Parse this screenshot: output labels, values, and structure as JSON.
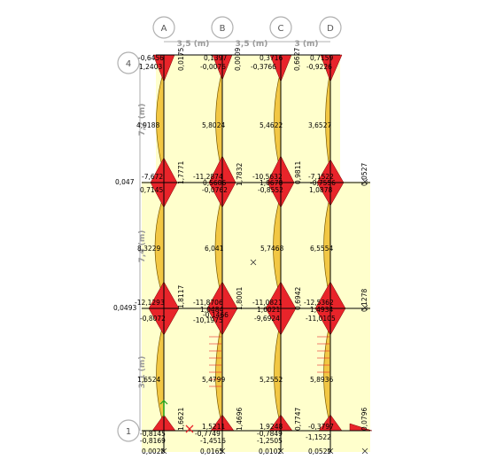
{
  "columns": [
    {
      "label": "A"
    },
    {
      "label": "B"
    },
    {
      "label": "C"
    },
    {
      "label": "D"
    }
  ],
  "rows": [
    {
      "label": "4"
    },
    {
      "label": "1"
    }
  ],
  "spans_x": [
    "3,5 (m)",
    "3,5 (m)",
    "3 (m)"
  ],
  "spans_y": [
    "7,2 (m)",
    "7,4 (m)",
    "3,1 (m)"
  ],
  "colors": {
    "slab": "#ffffcc",
    "moment_positive": "#f2c744",
    "moment_negative": "#e8242a",
    "frame": "#000000",
    "grid_bubble": "#b0b0b0"
  },
  "labels": [
    {
      "id": "t1",
      "text": "-0,6456"
    },
    {
      "id": "t2",
      "text": "1,2403"
    },
    {
      "id": "t3",
      "text": "0,0175"
    },
    {
      "id": "t4",
      "text": "0,1397"
    },
    {
      "id": "t5",
      "text": "-0,0076"
    },
    {
      "id": "t6",
      "text": "0,0009"
    },
    {
      "id": "t7",
      "text": "0,3716"
    },
    {
      "id": "t8",
      "text": "-0,3766"
    },
    {
      "id": "t9",
      "text": "0,6627"
    },
    {
      "id": "t10",
      "text": "0,7159"
    },
    {
      "id": "t11",
      "text": "-0,9226"
    },
    {
      "id": "t12",
      "text": "4,9188"
    },
    {
      "id": "t13",
      "text": "5,8024"
    },
    {
      "id": "t14",
      "text": "5,4622"
    },
    {
      "id": "t15",
      "text": "3,6527"
    },
    {
      "id": "t16",
      "text": "-7,672"
    },
    {
      "id": "t17",
      "text": "1,7771"
    },
    {
      "id": "t18",
      "text": "-11,2874"
    },
    {
      "id": "t19",
      "text": "1,7832"
    },
    {
      "id": "t20",
      "text": "-10,5632"
    },
    {
      "id": "t21",
      "text": "0,9811"
    },
    {
      "id": "t22",
      "text": "-7,1522"
    },
    {
      "id": "t23",
      "text": "0,0527"
    },
    {
      "id": "t24",
      "text": "0,047"
    },
    {
      "id": "t25",
      "text": "0,7145"
    },
    {
      "id": "t26",
      "text": "0,5686"
    },
    {
      "id": "t27",
      "text": "-0,0762"
    },
    {
      "id": "t28",
      "text": "1,0678"
    },
    {
      "id": "t29",
      "text": "-0,8552"
    },
    {
      "id": "t30",
      "text": "-0,7556"
    },
    {
      "id": "t31",
      "text": "1,0878"
    },
    {
      "id": "t32",
      "text": "8,3229"
    },
    {
      "id": "t33",
      "text": "6,041"
    },
    {
      "id": "t34",
      "text": "5,7468"
    },
    {
      "id": "t35",
      "text": "6,5554"
    },
    {
      "id": "t36",
      "text": "-12,1293"
    },
    {
      "id": "t37",
      "text": "1,8117"
    },
    {
      "id": "t38",
      "text": "-11,8706"
    },
    {
      "id": "t39",
      "text": "1,8001"
    },
    {
      "id": "t40",
      "text": "-11,0821"
    },
    {
      "id": "t41",
      "text": "0,6942"
    },
    {
      "id": "t42",
      "text": "-12,5362"
    },
    {
      "id": "t43",
      "text": "0,1278"
    },
    {
      "id": "t44",
      "text": "0,0493"
    },
    {
      "id": "t45",
      "text": "-0,8072"
    },
    {
      "id": "t46",
      "text": "1,0484"
    },
    {
      "id": "t47",
      "text": "-0,1466"
    },
    {
      "id": "t48",
      "text": "-10,1975"
    },
    {
      "id": "t49",
      "text": "1,6021"
    },
    {
      "id": "t50",
      "text": "-9,6924"
    },
    {
      "id": "t51",
      "text": "1,4934"
    },
    {
      "id": "t52",
      "text": "-11,0105"
    },
    {
      "id": "t53",
      "text": "1,6524"
    },
    {
      "id": "t54",
      "text": "5,4799"
    },
    {
      "id": "t55",
      "text": "5,2552"
    },
    {
      "id": "t56",
      "text": "5,8936"
    },
    {
      "id": "t57",
      "text": "1,6621"
    },
    {
      "id": "t58",
      "text": "1,4696"
    },
    {
      "id": "t59",
      "text": "0,7747"
    },
    {
      "id": "t60",
      "text": "0,0796"
    },
    {
      "id": "t61",
      "text": "-0,8145"
    },
    {
      "id": "t62",
      "text": "-0,8169"
    },
    {
      "id": "t63",
      "text": "1,5211"
    },
    {
      "id": "t64",
      "text": "-0,7749"
    },
    {
      "id": "t65",
      "text": "-1,4516"
    },
    {
      "id": "t66",
      "text": "1,9248"
    },
    {
      "id": "t67",
      "text": "-0,7849"
    },
    {
      "id": "t68",
      "text": "-1,2505"
    },
    {
      "id": "t69",
      "text": "-0,3797"
    },
    {
      "id": "t70",
      "text": "-1,1522"
    },
    {
      "id": "t71",
      "text": "0,0028"
    },
    {
      "id": "t72",
      "text": "0,0165"
    },
    {
      "id": "t73",
      "text": "0,0102"
    },
    {
      "id": "t74",
      "text": "0,0529"
    }
  ]
}
